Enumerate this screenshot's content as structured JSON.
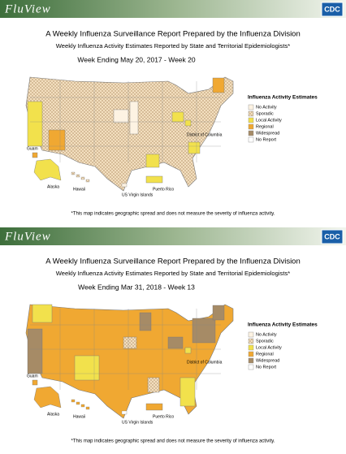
{
  "panels": [
    {
      "header": "FluView",
      "logo": "CDC",
      "title": "A Weekly Influenza Surveillance Report Prepared by the Influenza Division",
      "subtitle": "Weekly Influenza Activity Estimates Reported by State and Territorial Epidemiologists*",
      "week": "Week Ending May 20, 2017 - Week 20",
      "legend": {
        "title": "Influenza Activity Estimates",
        "items": [
          {
            "label": "No Activity",
            "color": "#fdf3e3"
          },
          {
            "label": "Sporadic",
            "color": "#f3dfbf"
          },
          {
            "label": "Local Activity",
            "color": "#f2e14c"
          },
          {
            "label": "Regional",
            "color": "#f0a832"
          },
          {
            "label": "Widespread",
            "color": "#a68b66"
          },
          {
            "label": "No Report",
            "color": "#ffffff"
          }
        ]
      },
      "labels": {
        "dc": "District of Columbia",
        "guam": "Guam",
        "alaska": "Alaska",
        "hawaii": "Hawaii",
        "usvi": "US Virgin Islands",
        "pr": "Puerto Rico"
      },
      "footnote": "*This map indicates geographic spread and does not measure the severity of influenza activity."
    },
    {
      "header": "FluView",
      "logo": "CDC",
      "title": "A Weekly Influenza Surveillance Report Prepared by the Influenza Division",
      "subtitle": "Weekly Influenza Activity Estimates Reported by State and Territorial Epidemiologists*",
      "week": "Week Ending Mar 31, 2018 - Week 13",
      "legend": {
        "title": "Influenza Activity Estimates",
        "items": [
          {
            "label": "No Activity",
            "color": "#fdf3e3"
          },
          {
            "label": "Sporadic",
            "color": "#f3dfbf"
          },
          {
            "label": "Local Activity",
            "color": "#f2e14c"
          },
          {
            "label": "Regional",
            "color": "#f0a832"
          },
          {
            "label": "Widespread",
            "color": "#a68b66"
          },
          {
            "label": "No Report",
            "color": "#ffffff"
          }
        ]
      },
      "labels": {
        "dc": "District of Columbia",
        "guam": "Guam",
        "alaska": "Alaska",
        "hawaii": "Hawaii",
        "usvi": "US Virgin Islands",
        "pr": "Puerto Rico"
      },
      "footnote": "*This map indicates geographic spread and does not measure the severity of influenza activity."
    }
  ]
}
